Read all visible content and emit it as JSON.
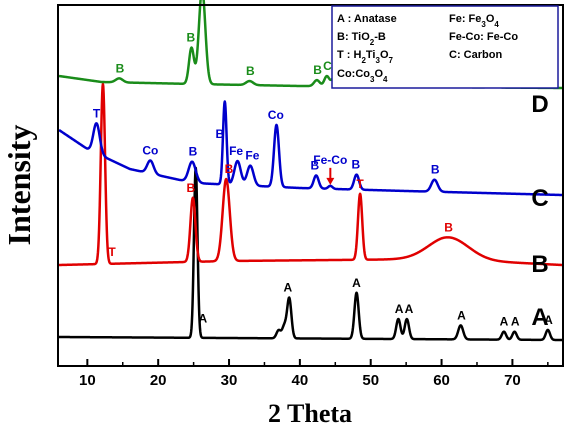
{
  "chart_data": {
    "type": "line",
    "xlabel": "2 Theta",
    "ylabel": "Intensity",
    "xlim": [
      6,
      77
    ],
    "x_ticks": [
      10,
      20,
      30,
      40,
      50,
      60,
      70
    ],
    "legend": {
      "placement": "top-right",
      "entries": [
        {
          "text": "A : Anatase"
        },
        {
          "text": "B: TiO",
          "sub": "2",
          "rest": "-B"
        },
        {
          "text": "T : H",
          "sub": "2",
          "rest": "Ti",
          "sub2": "3",
          "rest2": "O",
          "sub3": "7"
        },
        {
          "text": "Co:Co",
          "sub": "3",
          "rest": "O",
          "sub2": "4"
        },
        {
          "text": "Fe: Fe",
          "sub": "3",
          "rest": "O",
          "sub2": "4"
        },
        {
          "text": "Fe-Co: Fe-Co"
        },
        {
          "text": "C: Carbon"
        }
      ]
    },
    "series": [
      {
        "name": "A",
        "color": "#000000",
        "baseline": 0,
        "background": [
          [
            6,
            3
          ],
          [
            77,
            0
          ]
        ],
        "peaks": [
          [
            25.3,
            170,
            0.25
          ],
          [
            37.0,
            8,
            0.3
          ],
          [
            37.8,
            12,
            0.3
          ],
          [
            38.5,
            40,
            0.3
          ],
          [
            48.0,
            46,
            0.3
          ],
          [
            53.9,
            20,
            0.3
          ],
          [
            55.1,
            20,
            0.3
          ],
          [
            62.7,
            14,
            0.35
          ],
          [
            68.8,
            8,
            0.3
          ],
          [
            70.3,
            8,
            0.3
          ],
          [
            75.0,
            10,
            0.3
          ]
        ],
        "labels": [
          {
            "x": 26.3,
            "text": "A"
          },
          {
            "x": 38.3,
            "text": "A"
          },
          {
            "x": 48.0,
            "text": "A"
          },
          {
            "x": 54.0,
            "text": "A"
          },
          {
            "x": 55.4,
            "text": "A"
          },
          {
            "x": 62.8,
            "text": "A"
          },
          {
            "x": 68.8,
            "text": "A"
          },
          {
            "x": 70.4,
            "text": "A"
          },
          {
            "x": 75.1,
            "text": "A"
          }
        ]
      },
      {
        "name": "B",
        "color": "#e00000",
        "baseline": 0,
        "background": [
          [
            6,
            0
          ],
          [
            30,
            4
          ],
          [
            60,
            6
          ],
          [
            77,
            0
          ]
        ],
        "peaks": [
          [
            12.2,
            180,
            0.3
          ],
          [
            24.9,
            64,
            0.35
          ],
          [
            29.6,
            82,
            0.5
          ],
          [
            48.5,
            66,
            0.3
          ],
          [
            61.0,
            22,
            2.8
          ]
        ],
        "labels": [
          {
            "x": 13.5,
            "text": "T"
          },
          {
            "x": 24.6,
            "text": "B"
          },
          {
            "x": 30.0,
            "text": "B"
          },
          {
            "x": 48.5,
            "text": "T"
          },
          {
            "x": 61.0,
            "text": "B"
          }
        ]
      },
      {
        "name": "C",
        "color": "#0000cc",
        "baseline": 0,
        "background": [
          [
            6,
            65
          ],
          [
            10,
            46
          ],
          [
            16,
            26
          ],
          [
            25,
            12
          ],
          [
            40,
            7
          ],
          [
            55,
            4
          ],
          [
            77,
            0
          ]
        ],
        "peaks": [
          [
            11.3,
            30,
            0.45
          ],
          [
            18.9,
            13,
            0.45
          ],
          [
            24.8,
            21,
            0.5
          ],
          [
            29.4,
            83,
            0.25
          ],
          [
            31.2,
            24,
            0.45
          ],
          [
            33.0,
            20,
            0.45
          ],
          [
            36.7,
            62,
            0.35
          ],
          [
            42.3,
            13,
            0.35
          ],
          [
            44.3,
            3,
            0.3
          ],
          [
            48.0,
            15,
            0.35
          ],
          [
            59.0,
            12,
            0.45
          ]
        ],
        "labels": [
          {
            "x": 11.3,
            "text": "T"
          },
          {
            "x": 18.9,
            "text": "Co"
          },
          {
            "x": 24.9,
            "text": "B"
          },
          {
            "x": 28.7,
            "text": "B"
          },
          {
            "x": 31.0,
            "text": "Fe"
          },
          {
            "x": 33.3,
            "text": "Fe"
          },
          {
            "x": 36.6,
            "text": "Co"
          },
          {
            "x": 42.1,
            "text": "B"
          },
          {
            "x": 44.3,
            "text": "Fe-Co",
            "small": true,
            "arrow": true
          },
          {
            "x": 47.9,
            "text": "B"
          },
          {
            "x": 59.1,
            "text": "B"
          }
        ]
      },
      {
        "name": "D",
        "color": "#1a8c1a",
        "baseline": 0,
        "background": [
          [
            6,
            12
          ],
          [
            12,
            6
          ],
          [
            25,
            4
          ],
          [
            40,
            2
          ],
          [
            77,
            0
          ]
        ],
        "peaks": [
          [
            14.5,
            4,
            0.5
          ],
          [
            24.7,
            36,
            0.35
          ],
          [
            26.2,
            95,
            0.45
          ],
          [
            32.9,
            4,
            0.5
          ],
          [
            42.4,
            6,
            0.4
          ],
          [
            43.8,
            10,
            0.35
          ],
          [
            44.8,
            8,
            0.35
          ],
          [
            47.6,
            7,
            0.4
          ],
          [
            67.3,
            2,
            0.5
          ]
        ],
        "labels": [
          {
            "x": 14.6,
            "text": "B"
          },
          {
            "x": 24.6,
            "text": "B"
          },
          {
            "x": 26.2,
            "text": "C"
          },
          {
            "x": 33.0,
            "text": "B"
          },
          {
            "x": 42.5,
            "text": "B"
          },
          {
            "x": 43.9,
            "text": "C"
          },
          {
            "x": 45.2,
            "text": "B"
          },
          {
            "x": 47.6,
            "text": "B"
          },
          {
            "x": 67.6,
            "text": "B"
          }
        ]
      }
    ]
  }
}
